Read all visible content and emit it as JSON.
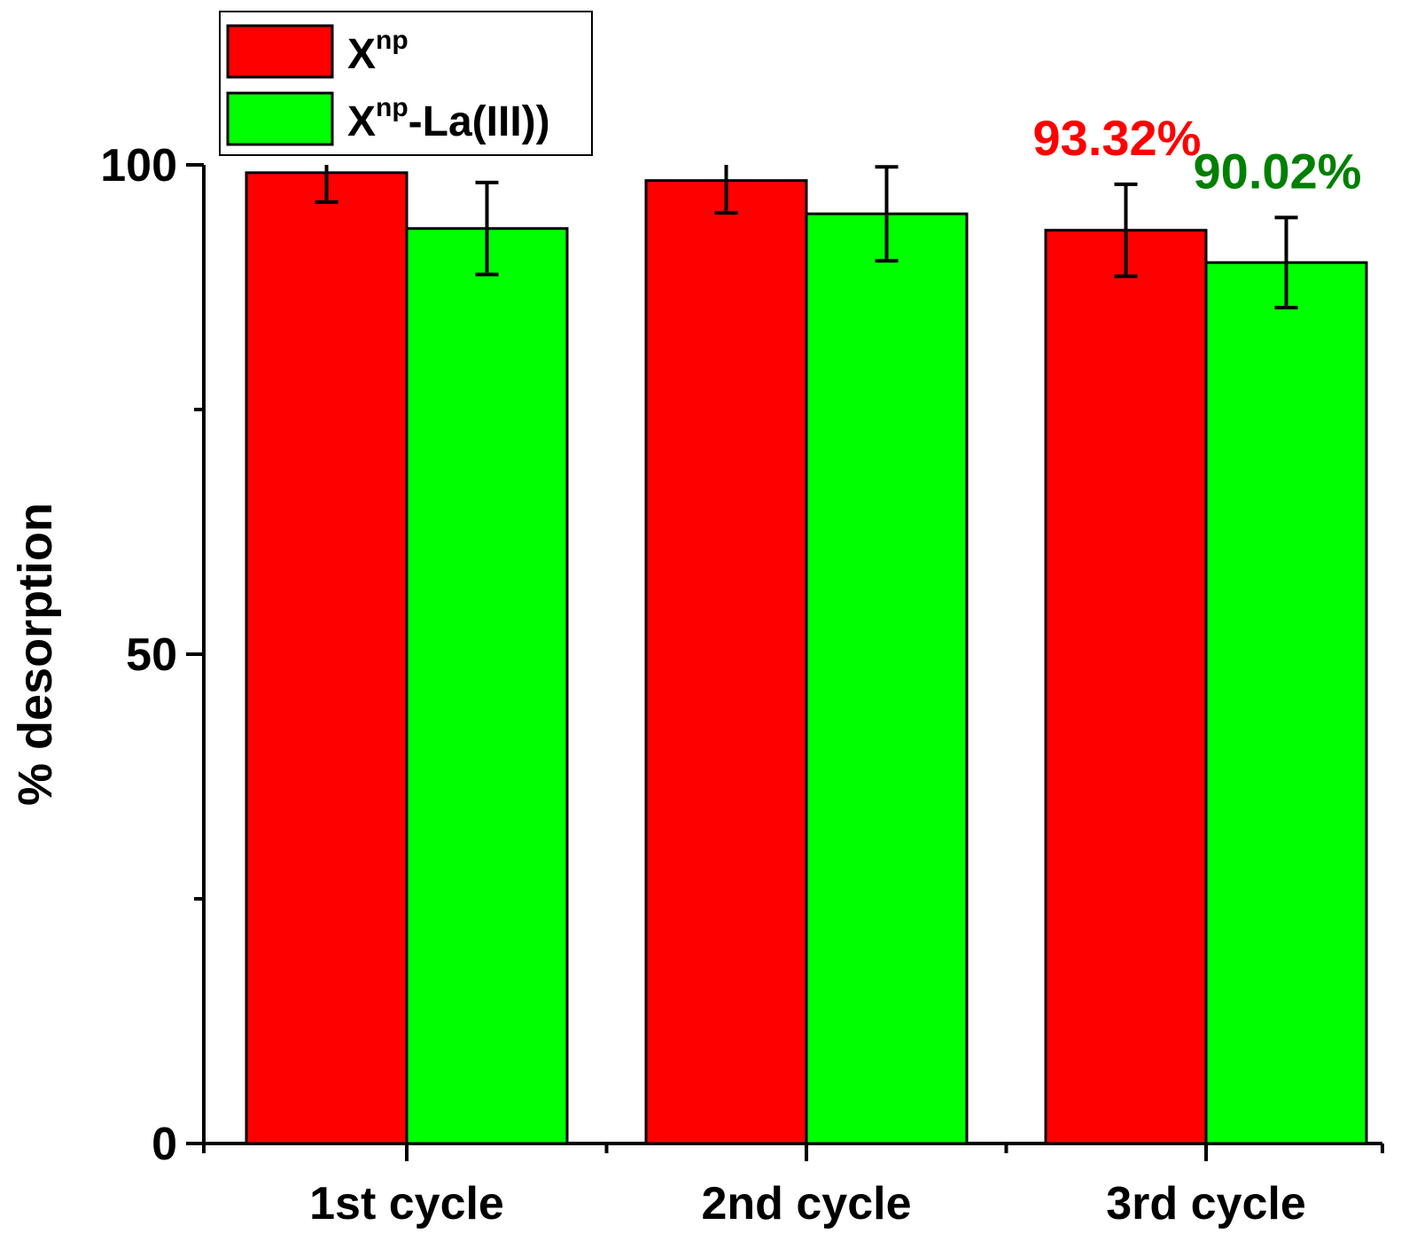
{
  "chart_data": {
    "type": "bar",
    "categories": [
      "1st cycle",
      "2nd cycle",
      "3rd cycle"
    ],
    "series": [
      {
        "name": "Xnp",
        "legend_base": "X",
        "legend_sup": "np",
        "legend_suffix": "",
        "color": "#ff0000",
        "values": [
          99.2,
          98.4,
          93.32
        ],
        "errors": [
          3.0,
          3.3,
          4.7
        ]
      },
      {
        "name": "Xnp-La(III))",
        "legend_base": "X",
        "legend_sup": "np",
        "legend_suffix": "-La(III))",
        "color": "#00ff00",
        "values": [
          93.5,
          95.0,
          90.02
        ],
        "errors": [
          4.7,
          4.8,
          4.6
        ]
      }
    ],
    "ylabel": "% desorption",
    "xlabel": "",
    "ylim": [
      0,
      100
    ],
    "yticks": [
      "0",
      "50",
      "100"
    ],
    "grid": false,
    "legend_position": "top-left",
    "annotations": [
      {
        "text": "93.32%",
        "series": 0,
        "category": 2,
        "color": "#ff0000"
      },
      {
        "text": "90.02%",
        "series": 1,
        "category": 2,
        "color": "#008000"
      }
    ]
  }
}
